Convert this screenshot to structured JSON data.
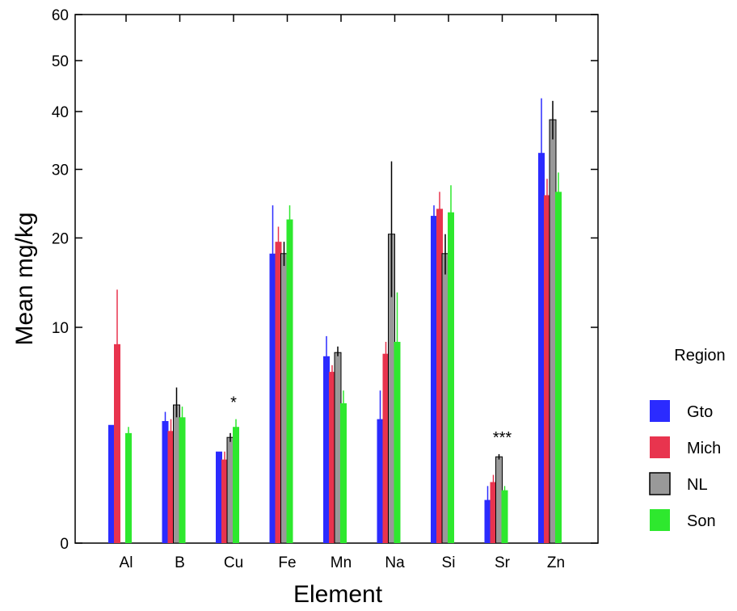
{
  "chart_data": {
    "type": "bar",
    "xlabel": "Element",
    "ylabel": "Mean mg/kg",
    "y_scale": "sqrt",
    "ylim": [
      0,
      60
    ],
    "y_ticks": [
      0,
      10,
      20,
      30,
      40,
      50,
      60
    ],
    "categories": [
      "Al",
      "B",
      "Cu",
      "Fe",
      "Mn",
      "Na",
      "Si",
      "Sr",
      "Zn"
    ],
    "legend_title": "Region",
    "legend_position": "right",
    "series": [
      {
        "name": "Gto",
        "color": "#2b2bff",
        "values": [
          3.0,
          3.2,
          1.8,
          18.0,
          7.5,
          3.3,
          23.0,
          0.4,
          32.7
        ],
        "error_low": [
          3.0,
          3.0,
          1.8,
          12.0,
          5.8,
          1.6,
          22.0,
          0.1,
          25.0
        ],
        "error_high": [
          3.0,
          3.7,
          1.8,
          24.5,
          9.2,
          5.0,
          24.5,
          0.7,
          42.5
        ]
      },
      {
        "name": "Mich",
        "color": "#e8344e",
        "values": [
          8.5,
          2.7,
          1.5,
          19.5,
          6.3,
          7.7,
          24.0,
          0.8,
          26.0
        ],
        "error_low": [
          4.0,
          2.2,
          1.3,
          17.5,
          5.9,
          6.5,
          22.5,
          0.6,
          23.5
        ],
        "error_high": [
          13.8,
          3.3,
          1.8,
          21.5,
          6.8,
          8.7,
          26.5,
          1.0,
          28.5
        ]
      },
      {
        "name": "NL",
        "color": "#999999",
        "values": [
          null,
          4.1,
          2.4,
          18.0,
          7.8,
          20.5,
          18.0,
          1.6,
          38.5
        ],
        "error_low": [
          null,
          3.4,
          2.2,
          16.5,
          7.5,
          13.0,
          15.5,
          1.5,
          35.0
        ],
        "error_high": [
          null,
          5.2,
          2.6,
          19.5,
          8.3,
          31.3,
          20.5,
          1.7,
          42.0
        ]
      },
      {
        "name": "Son",
        "color": "#2ee82e",
        "values": [
          2.6,
          3.4,
          2.9,
          22.5,
          4.2,
          8.7,
          23.5,
          0.6,
          26.5
        ],
        "error_low": [
          2.4,
          3.0,
          2.5,
          20.5,
          3.6,
          5.5,
          20.5,
          0.5,
          24.0
        ],
        "error_high": [
          2.9,
          4.0,
          3.3,
          24.5,
          5.0,
          13.5,
          27.5,
          0.7,
          29.5
        ]
      }
    ],
    "annotations": [
      {
        "category": "Cu",
        "text": "*"
      },
      {
        "category": "Sr",
        "text": "***"
      }
    ]
  }
}
